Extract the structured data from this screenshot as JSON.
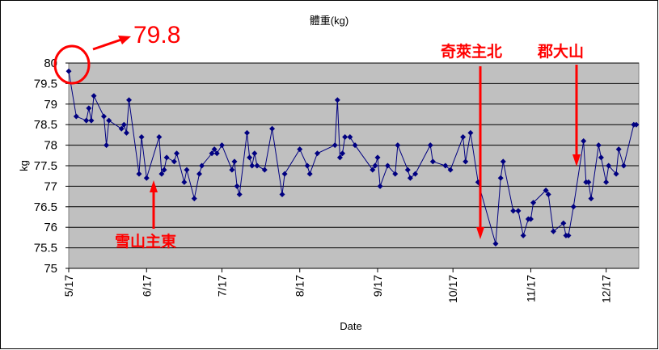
{
  "chart_data": {
    "type": "line",
    "title": "體重(kg)",
    "x_label": "Date",
    "y_label": "kg",
    "x": [
      "5/17",
      "5/20",
      "5/24",
      "5/25",
      "5/26",
      "5/27",
      "5/31",
      "6/1",
      "6/2",
      "6/7",
      "6/8",
      "6/9",
      "6/10",
      "6/14",
      "6/15",
      "6/17",
      "6/22",
      "6/23",
      "6/24",
      "6/25",
      "6/28",
      "6/29",
      "7/2",
      "7/3",
      "7/6",
      "7/8",
      "7/9",
      "7/13",
      "7/14",
      "7/15",
      "7/17",
      "7/21",
      "7/22",
      "7/23",
      "7/24",
      "7/27",
      "7/28",
      "7/29",
      "7/30",
      "7/31",
      "8/3",
      "8/6",
      "8/10",
      "8/11",
      "8/17",
      "8/20",
      "8/21",
      "8/24",
      "8/31",
      "9/1",
      "9/2",
      "9/3",
      "9/4",
      "9/6",
      "9/8",
      "9/15",
      "9/16",
      "9/17",
      "9/18",
      "9/21",
      "9/24",
      "9/25",
      "9/29",
      "9/30",
      "10/2",
      "10/8",
      "10/9",
      "10/14",
      "10/16",
      "10/21",
      "10/22",
      "10/24",
      "10/27",
      "11/3",
      "11/5",
      "11/6",
      "11/10",
      "11/12",
      "11/14",
      "11/16",
      "11/17",
      "11/18",
      "11/23",
      "11/24",
      "11/26",
      "11/30",
      "12/1",
      "12/2",
      "12/4",
      "12/8",
      "12/9",
      "12/10",
      "12/11",
      "12/14",
      "12/15",
      "12/17",
      "12/18",
      "12/21",
      "12/22",
      "12/24",
      "12/28",
      "12/29"
    ],
    "series": [
      {
        "color": "#000080",
        "values": [
          79.8,
          78.7,
          78.6,
          78.9,
          78.6,
          79.2,
          78.7,
          78.0,
          78.6,
          78.4,
          78.5,
          78.3,
          79.1,
          77.3,
          78.2,
          77.2,
          78.2,
          77.3,
          77.4,
          77.7,
          77.6,
          77.8,
          77.1,
          77.4,
          76.7,
          77.3,
          77.5,
          77.8,
          77.9,
          77.8,
          78.0,
          77.4,
          77.6,
          77.0,
          76.8,
          78.3,
          77.7,
          77.5,
          77.8,
          77.5,
          77.4,
          78.4,
          76.8,
          77.3,
          77.9,
          77.5,
          77.3,
          77.8,
          78.0,
          79.1,
          77.7,
          77.8,
          78.2,
          78.2,
          78.0,
          77.4,
          77.5,
          77.7,
          77.0,
          77.5,
          77.3,
          78.0,
          77.4,
          77.2,
          77.3,
          78.0,
          77.6,
          77.5,
          77.4,
          78.2,
          77.6,
          78.3,
          77.1,
          75.6,
          77.2,
          77.6,
          76.4,
          76.4,
          75.8,
          76.2,
          76.2,
          76.6,
          76.9,
          76.8,
          75.9,
          76.1,
          75.8,
          75.8,
          76.5,
          78.1,
          77.1,
          77.1,
          76.7,
          78.0,
          77.7,
          77.1,
          77.5,
          77.3,
          77.9,
          77.5,
          78.5,
          78.5
        ]
      }
    ],
    "xlim": [
      "5/17",
      "12/30"
    ],
    "xticks": [
      "5/17",
      "6/17",
      "7/17",
      "8/17",
      "9/17",
      "10/17",
      "11/17",
      "12/17"
    ],
    "ylim": [
      75,
      80
    ],
    "yticks": [
      75,
      75.5,
      76,
      76.5,
      77,
      77.5,
      78,
      78.5,
      79,
      79.5,
      80
    ],
    "grid": true,
    "plot_background": "#c0c0c0",
    "annotations": [
      "79.8",
      "奇萊主北",
      "郡大山",
      "雪山主東"
    ]
  }
}
